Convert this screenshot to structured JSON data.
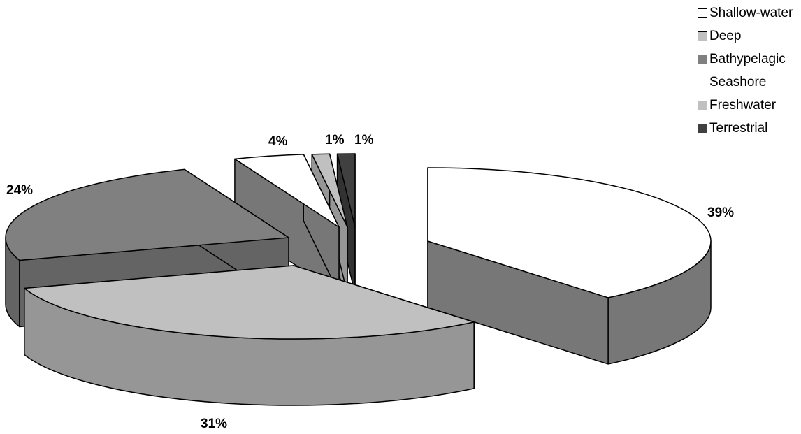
{
  "chart_data": {
    "type": "pie",
    "style": "3d-exploded",
    "title": "",
    "categories": [
      "Shallow-water",
      "Deep",
      "Bathypelagic",
      "Seashore",
      "Freshwater",
      "Terrestrial"
    ],
    "values": [
      39,
      31,
      24,
      4,
      1,
      1
    ],
    "labels": [
      "39%",
      "31%",
      "24%",
      "4%",
      "1%",
      "1%"
    ],
    "colors": [
      "#ffffff",
      "#c0c0c0",
      "#808080",
      "#ffffff",
      "#c0c0c0",
      "#404040"
    ],
    "legend_position": "top-right"
  }
}
